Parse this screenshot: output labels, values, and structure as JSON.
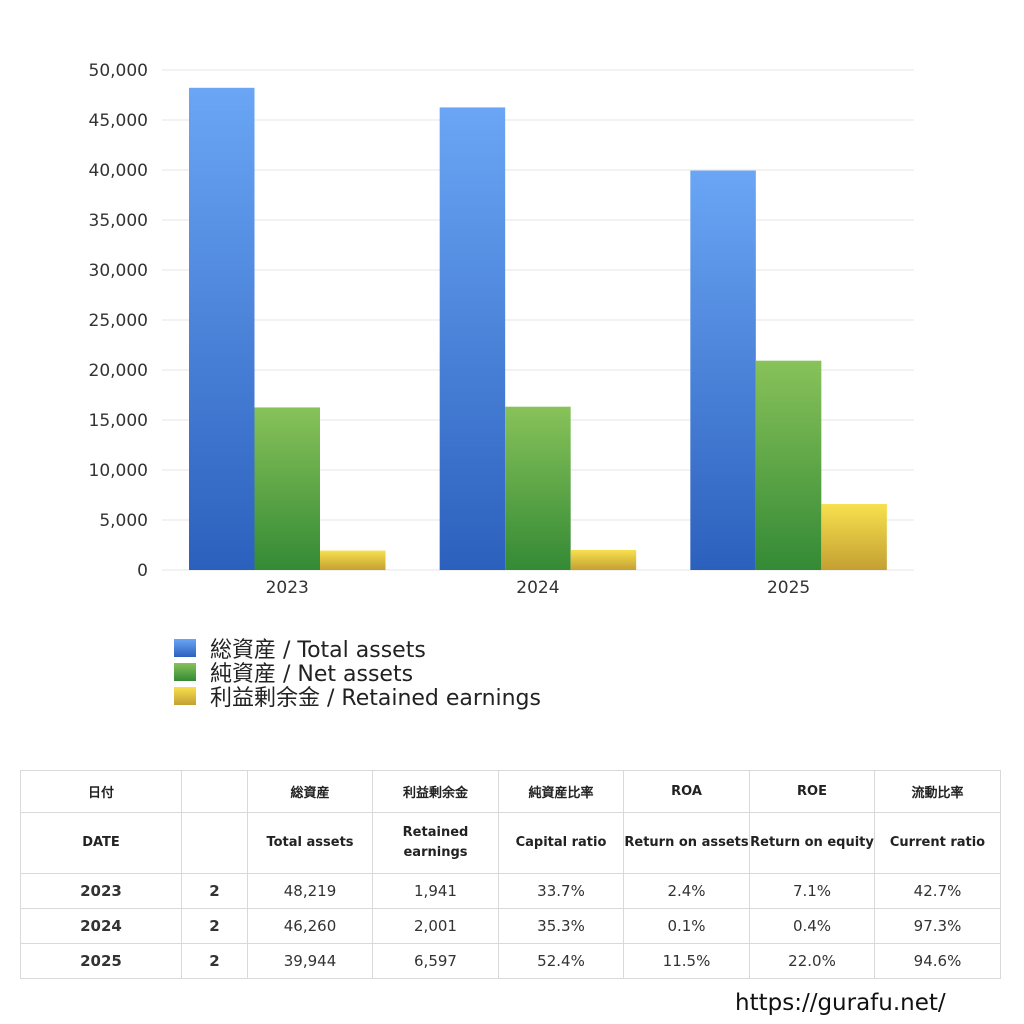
{
  "chart_data": {
    "type": "bar",
    "categories": [
      "2023",
      "2024",
      "2025"
    ],
    "series": [
      {
        "name": "総資産 / Total assets",
        "values": [
          48219,
          46260,
          39944
        ],
        "color_top": "#6aa6f5",
        "color_bottom": "#2c60bd"
      },
      {
        "name": "純資産 / Net assets",
        "values": [
          16256,
          16330,
          20931
        ],
        "color_top": "#88c25a",
        "color_bottom": "#348a35"
      },
      {
        "name": "利益剰余金 / Retained earnings",
        "values": [
          1941,
          2001,
          6597
        ],
        "color_top": "#f7e04e",
        "color_bottom": "#c4a032"
      }
    ],
    "ylim": [
      0,
      50000
    ],
    "yticks": [
      "0",
      "5,000",
      "10,000",
      "15,000",
      "20,000",
      "25,000",
      "30,000",
      "35,000",
      "40,000",
      "45,000",
      "50,000"
    ],
    "title": "",
    "xlabel": "",
    "ylabel": "",
    "grid": true,
    "legend_position": "bottom-left"
  },
  "table": {
    "header_jp": [
      "日付",
      "",
      "総資産",
      "利益剰余金",
      "純資産比率",
      "ROA",
      "ROE",
      "流動比率"
    ],
    "header_en": [
      "DATE",
      "",
      "Total assets",
      "Retained earnings",
      "Capital ratio",
      "Return on assets",
      "Return on equity",
      "Current ratio"
    ],
    "rows": [
      {
        "year": "2023",
        "count": "2",
        "total_assets": "48,219",
        "retained": "1,941",
        "capital_ratio": "33.7%",
        "roa": "2.4%",
        "roe": "7.1%",
        "current_ratio": "42.7%"
      },
      {
        "year": "2024",
        "count": "2",
        "total_assets": "46,260",
        "retained": "2,001",
        "capital_ratio": "35.3%",
        "roa": "0.1%",
        "roe": "0.4%",
        "current_ratio": "97.3%"
      },
      {
        "year": "2025",
        "count": "2",
        "total_assets": "39,944",
        "retained": "6,597",
        "capital_ratio": "52.4%",
        "roa": "11.5%",
        "roe": "22.0%",
        "current_ratio": "94.6%"
      }
    ]
  },
  "footer": {
    "url": "https://gurafu.net/"
  }
}
